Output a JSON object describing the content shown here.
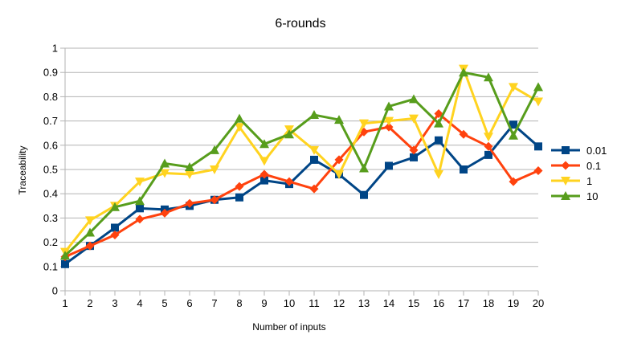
{
  "chart_data": {
    "type": "line",
    "title": "6-rounds",
    "xlabel": "Number of inputs",
    "ylabel": "Traceability",
    "x": [
      1,
      2,
      3,
      4,
      5,
      6,
      7,
      8,
      9,
      10,
      11,
      12,
      13,
      14,
      15,
      16,
      17,
      18,
      19,
      20
    ],
    "ylim": [
      0,
      1
    ],
    "yticks": [
      "0",
      "0.1",
      "0.2",
      "0.3",
      "0.4",
      "0.5",
      "0.6",
      "0.7",
      "0.8",
      "0.9",
      "1"
    ],
    "grid": true,
    "legend_position": "right",
    "series": [
      {
        "name": "0.01",
        "color": "#004586",
        "marker": "square",
        "values": [
          0.11,
          0.185,
          0.26,
          0.34,
          0.335,
          0.35,
          0.375,
          0.385,
          0.455,
          0.44,
          0.54,
          0.48,
          0.395,
          0.515,
          0.55,
          0.62,
          0.5,
          0.56,
          0.685,
          0.595
        ]
      },
      {
        "name": "0.1",
        "color": "#ff420e",
        "marker": "diamond",
        "values": [
          0.14,
          0.185,
          0.23,
          0.295,
          0.32,
          0.36,
          0.375,
          0.43,
          0.48,
          0.45,
          0.42,
          0.54,
          0.655,
          0.675,
          0.58,
          0.73,
          0.645,
          0.595,
          0.45,
          0.495
        ]
      },
      {
        "name": "1",
        "color": "#ffd320",
        "marker": "triangle-down",
        "values": [
          0.16,
          0.29,
          0.35,
          0.45,
          0.485,
          0.48,
          0.5,
          0.675,
          0.535,
          0.665,
          0.58,
          0.48,
          0.69,
          0.7,
          0.71,
          0.48,
          0.915,
          0.635,
          0.84,
          0.78
        ]
      },
      {
        "name": "10",
        "color": "#579d1c",
        "marker": "triangle-up",
        "values": [
          0.145,
          0.24,
          0.345,
          0.37,
          0.525,
          0.51,
          0.58,
          0.71,
          0.605,
          0.645,
          0.725,
          0.705,
          0.505,
          0.76,
          0.79,
          0.69,
          0.9,
          0.88,
          0.64,
          0.84
        ]
      }
    ]
  }
}
